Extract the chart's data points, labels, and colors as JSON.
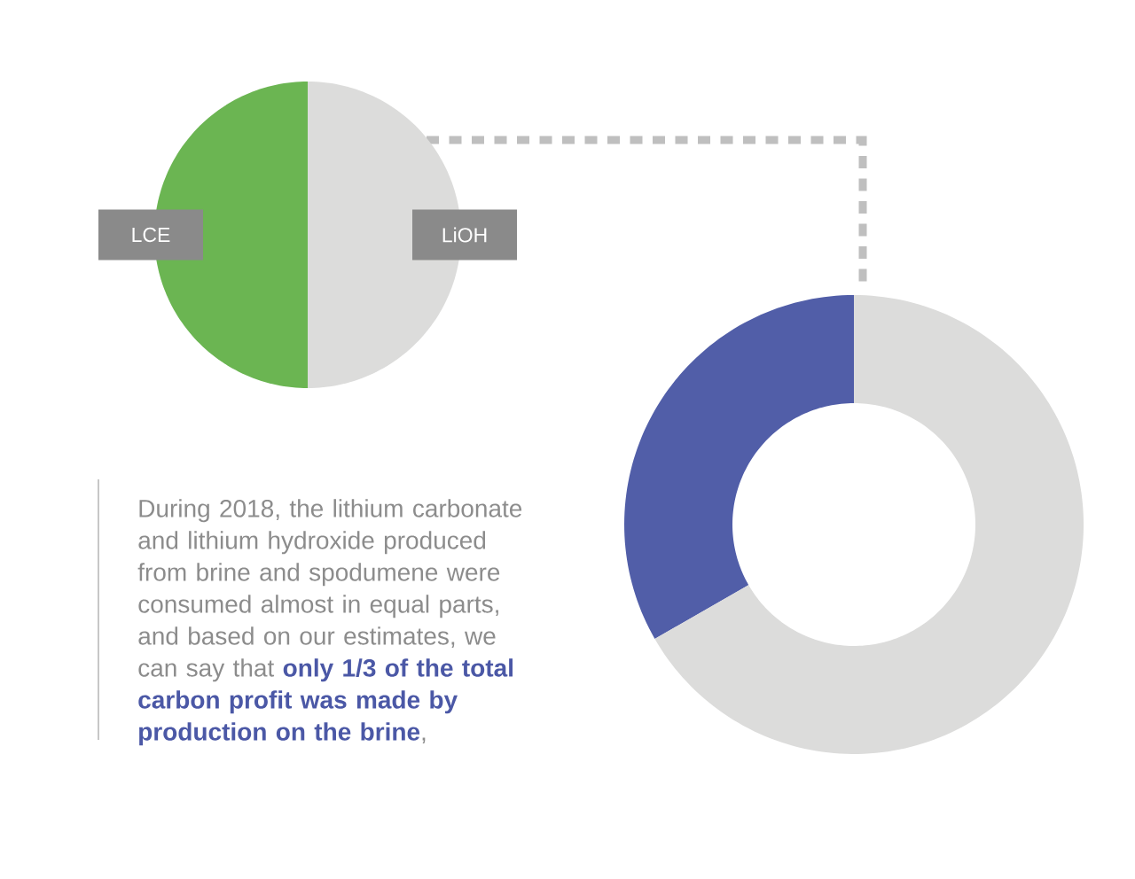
{
  "chart_data": [
    {
      "type": "pie",
      "categories": [
        "LCE",
        "LiOH"
      ],
      "values": [
        50,
        50
      ],
      "colors": [
        "#6bb552",
        "#dcdcdb"
      ],
      "annotations": [
        "During 2018, the lithium carbonate and lithium hydroxide produced from brine and spodumene were consumed almost in equal parts, and based on our estimates, we can say that **only 1/3 of the total carbon profit was made by production on the brine**,"
      ]
    },
    {
      "type": "donut",
      "categories": [
        null,
        null
      ],
      "values": [
        33.3,
        66.7
      ],
      "colors": [
        "#515ea8",
        "#dcdcdb"
      ]
    }
  ]
}
